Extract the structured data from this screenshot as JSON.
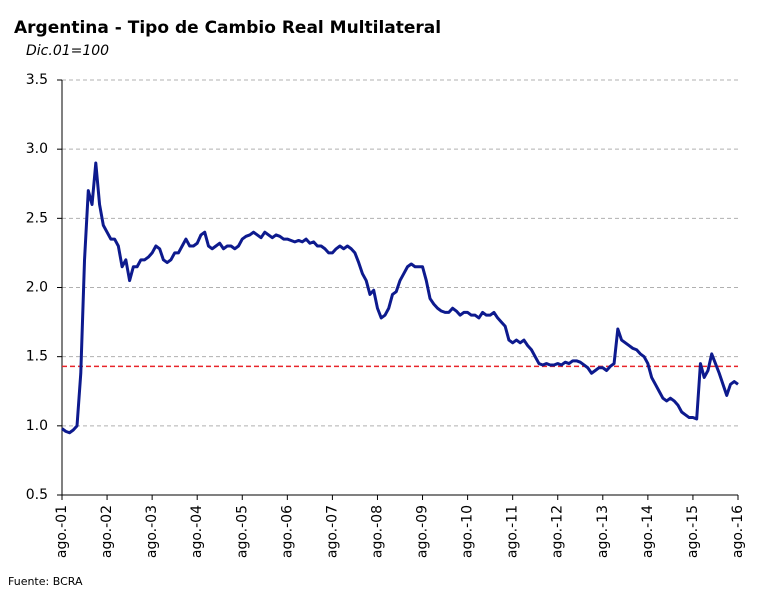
{
  "chart_data": {
    "type": "line",
    "title": "Argentina - Tipo de Cambio Real Multilateral",
    "subtitle": "Dic.01=100",
    "source": "Fuente: BCRA",
    "color": "#0d1a8e",
    "categories": [
      "ago.-01",
      null,
      null,
      null,
      null,
      null,
      null,
      null,
      null,
      null,
      null,
      null,
      "ago.-02",
      null,
      null,
      null,
      null,
      null,
      null,
      null,
      null,
      null,
      null,
      null,
      "ago.-03",
      null,
      null,
      null,
      null,
      null,
      null,
      null,
      null,
      null,
      null,
      null,
      "ago.-04",
      null,
      null,
      null,
      null,
      null,
      null,
      null,
      null,
      null,
      null,
      null,
      "ago.-05",
      null,
      null,
      null,
      null,
      null,
      null,
      null,
      null,
      null,
      null,
      null,
      "ago.-06",
      null,
      null,
      null,
      null,
      null,
      null,
      null,
      null,
      null,
      null,
      null,
      "ago.-07",
      null,
      null,
      null,
      null,
      null,
      null,
      null,
      null,
      null,
      null,
      null,
      "ago.-08",
      null,
      null,
      null,
      null,
      null,
      null,
      null,
      null,
      null,
      null,
      null,
      "ago.-09",
      null,
      null,
      null,
      null,
      null,
      null,
      null,
      null,
      null,
      null,
      null,
      "ago.-10",
      null,
      null,
      null,
      null,
      null,
      null,
      null,
      null,
      null,
      null,
      null,
      "ago.-11",
      null,
      null,
      null,
      null,
      null,
      null,
      null,
      null,
      null,
      null,
      null,
      "ago.-12",
      null,
      null,
      null,
      null,
      null,
      null,
      null,
      null,
      null,
      null,
      null,
      "ago.-13",
      null,
      null,
      null,
      null,
      null,
      null,
      null,
      null,
      null,
      null,
      null,
      "ago.-14",
      null,
      null,
      null,
      null,
      null,
      null,
      null,
      null,
      null,
      null,
      null,
      "ago.-15",
      null,
      null,
      null,
      null,
      null,
      null,
      null,
      null,
      null,
      null,
      null,
      "ago.-16"
    ],
    "values": [
      0.98,
      0.96,
      0.95,
      0.97,
      1.0,
      1.38,
      2.2,
      2.7,
      2.6,
      2.9,
      2.6,
      2.45,
      2.4,
      2.35,
      2.35,
      2.3,
      2.15,
      2.2,
      2.05,
      2.15,
      2.15,
      2.2,
      2.2,
      2.22,
      2.25,
      2.3,
      2.28,
      2.2,
      2.18,
      2.2,
      2.25,
      2.25,
      2.3,
      2.35,
      2.3,
      2.3,
      2.32,
      2.38,
      2.4,
      2.3,
      2.28,
      2.3,
      2.32,
      2.28,
      2.3,
      2.3,
      2.28,
      2.3,
      2.35,
      2.37,
      2.38,
      2.4,
      2.38,
      2.36,
      2.4,
      2.38,
      2.36,
      2.38,
      2.37,
      2.35,
      2.35,
      2.34,
      2.33,
      2.34,
      2.33,
      2.35,
      2.32,
      2.33,
      2.3,
      2.3,
      2.28,
      2.25,
      2.25,
      2.28,
      2.3,
      2.28,
      2.3,
      2.28,
      2.25,
      2.18,
      2.1,
      2.05,
      1.95,
      1.98,
      1.85,
      1.78,
      1.8,
      1.85,
      1.95,
      1.97,
      2.05,
      2.1,
      2.15,
      2.17,
      2.15,
      2.15,
      2.15,
      2.05,
      1.92,
      1.88,
      1.85,
      1.83,
      1.82,
      1.82,
      1.85,
      1.83,
      1.8,
      1.82,
      1.82,
      1.8,
      1.8,
      1.78,
      1.82,
      1.8,
      1.8,
      1.82,
      1.78,
      1.75,
      1.72,
      1.62,
      1.6,
      1.62,
      1.6,
      1.62,
      1.58,
      1.55,
      1.5,
      1.45,
      1.44,
      1.45,
      1.44,
      1.44,
      1.45,
      1.44,
      1.46,
      1.45,
      1.47,
      1.47,
      1.46,
      1.44,
      1.42,
      1.38,
      1.4,
      1.42,
      1.42,
      1.4,
      1.43,
      1.45,
      1.7,
      1.62,
      1.6,
      1.58,
      1.56,
      1.55,
      1.52,
      1.5,
      1.45,
      1.35,
      1.3,
      1.25,
      1.2,
      1.18,
      1.2,
      1.18,
      1.15,
      1.1,
      1.08,
      1.06,
      1.06,
      1.05,
      1.45,
      1.35,
      1.4,
      1.52,
      1.45,
      1.38,
      1.3,
      1.22,
      1.3,
      1.32,
      1.3
    ],
    "reference_line": {
      "value": 1.43,
      "color": "#e8242a"
    },
    "ylim": [
      0.5,
      3.5
    ],
    "yticks": [
      0.5,
      {
        "value": 1,
        "label": "1.0"
      },
      1.5,
      {
        "value": 2,
        "label": "2.0"
      },
      2.5,
      {
        "value": 3,
        "label": "3.0"
      },
      3.5
    ],
    "grid": true
  }
}
